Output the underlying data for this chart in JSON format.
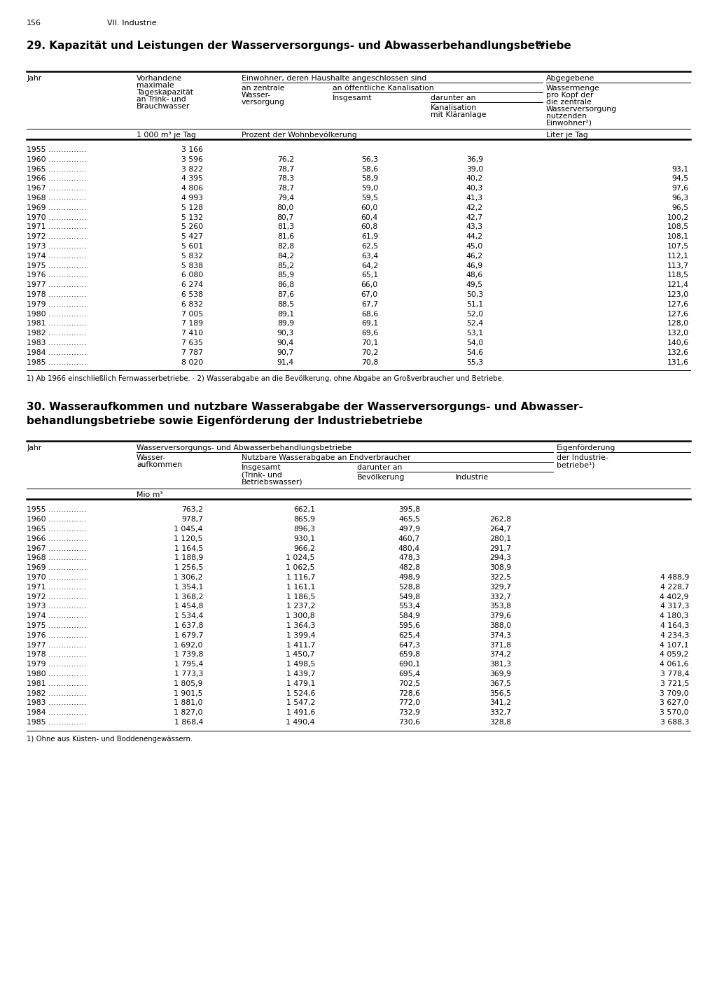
{
  "page_num": "156",
  "section": "VII. Industrie",
  "table1_title_main": "29. Kapazät und Leistungen der Wasserversorgungs- und Abwasserbehandlungsbetriebe",
  "table1_title": "29. Kapazität und Leistungen der Wasserversorgungs- und Abwasserbehandlungsbetriebe¹)",
  "table1_data": [
    {
      "jahr": "1955",
      "kap": "3 166",
      "zentral": "",
      "insges": "",
      "darunter": "",
      "abgeg": ""
    },
    {
      "jahr": "1960",
      "kap": "3 596",
      "zentral": "76,2",
      "insges": "56,3",
      "darunter": "36,9",
      "abgeg": ""
    },
    {
      "jahr": "1965",
      "kap": "3 822",
      "zentral": "78,7",
      "insges": "58,6",
      "darunter": "39,0",
      "abgeg": "93,1"
    },
    {
      "jahr": "1966",
      "kap": "4 395",
      "zentral": "78,3",
      "insges": "58,9",
      "darunter": "40,2",
      "abgeg": "94,5"
    },
    {
      "jahr": "1967",
      "kap": "4 806",
      "zentral": "78,7",
      "insges": "59,0",
      "darunter": "40,3",
      "abgeg": "97,6"
    },
    {
      "jahr": "1968",
      "kap": "4 993",
      "zentral": "79,4",
      "insges": "59,5",
      "darunter": "41,3",
      "abgeg": "96,3"
    },
    {
      "jahr": "1969",
      "kap": "5 128",
      "zentral": "80,0",
      "insges": "60,0",
      "darunter": "42,2",
      "abgeg": "96,5"
    },
    {
      "jahr": "1970",
      "kap": "5 132",
      "zentral": "80,7",
      "insges": "60,4",
      "darunter": "42,7",
      "abgeg": "100,2"
    },
    {
      "jahr": "1971",
      "kap": "5 260",
      "zentral": "81,3",
      "insges": "60,8",
      "darunter": "43,3",
      "abgeg": "108,5"
    },
    {
      "jahr": "1972",
      "kap": "5 427",
      "zentral": "81,6",
      "insges": "61,9",
      "darunter": "44,2",
      "abgeg": "108,1"
    },
    {
      "jahr": "1973",
      "kap": "5 601",
      "zentral": "82,8",
      "insges": "62,5",
      "darunter": "45,0",
      "abgeg": "107,5"
    },
    {
      "jahr": "1974",
      "kap": "5 832",
      "zentral": "84,2",
      "insges": "63,4",
      "darunter": "46,2",
      "abgeg": "112,1"
    },
    {
      "jahr": "1975",
      "kap": "5 838",
      "zentral": "85,2",
      "insges": "64,2",
      "darunter": "46,9",
      "abgeg": "113,7"
    },
    {
      "jahr": "1976",
      "kap": "6 080",
      "zentral": "85,9",
      "insges": "65,1",
      "darunter": "48,6",
      "abgeg": "118,5"
    },
    {
      "jahr": "1977",
      "kap": "6 274",
      "zentral": "86,8",
      "insges": "66,0",
      "darunter": "49,5",
      "abgeg": "121,4"
    },
    {
      "jahr": "1978",
      "kap": "6 538",
      "zentral": "87,6",
      "insges": "67,0",
      "darunter": "50,3",
      "abgeg": "123,0"
    },
    {
      "jahr": "1979",
      "kap": "6 832",
      "zentral": "88,5",
      "insges": "67,7",
      "darunter": "51,1",
      "abgeg": "127,6"
    },
    {
      "jahr": "1980",
      "kap": "7 005",
      "zentral": "89,1",
      "insges": "68,6",
      "darunter": "52,0",
      "abgeg": "127,6"
    },
    {
      "jahr": "1981",
      "kap": "7 189",
      "zentral": "89,9",
      "insges": "69,1",
      "darunter": "52,4",
      "abgeg": "128,0"
    },
    {
      "jahr": "1982",
      "kap": "7 410",
      "zentral": "90,3",
      "insges": "69,6",
      "darunter": "53,1",
      "abgeg": "132,0"
    },
    {
      "jahr": "1983",
      "kap": "7 635",
      "zentral": "90,4",
      "insges": "70,1",
      "darunter": "54,0",
      "abgeg": "140,6"
    },
    {
      "jahr": "1984",
      "kap": "7 787",
      "zentral": "90,7",
      "insges": "70,2",
      "darunter": "54,6",
      "abgeg": "132,6"
    },
    {
      "jahr": "1985",
      "kap": "8 020",
      "zentral": "91,4",
      "insges": "70,8",
      "darunter": "55,3",
      "abgeg": "131,6"
    }
  ],
  "table1_footnote": "1) Ab 1966 einschließlich Fernwasserbetriebe. · 2) Wasserabgabe an die Bevölkerung, ohne Abgabe an Großverbraucher und Betriebe.",
  "table2_title_line1": "30. Wasseraufkommen und nutzbare Wasserabgabe der Wasserversorgungs- und Abwasser-",
  "table2_title_line2": "behandlungsbetriebe sowie Eigenförderung der Industriebetriebe",
  "table2_data": [
    {
      "jahr": "1955",
      "aufk": "763,2",
      "insges": "662,1",
      "bev": "395,8",
      "ind": "",
      "eigen": ""
    },
    {
      "jahr": "1960",
      "aufk": "978,7",
      "insges": "865,9",
      "bev": "465,5",
      "ind": "262,8",
      "eigen": ""
    },
    {
      "jahr": "1965",
      "aufk": "1 045,4",
      "insges": "896,3",
      "bev": "497,9",
      "ind": "264,7",
      "eigen": ""
    },
    {
      "jahr": "1966",
      "aufk": "1 120,5",
      "insges": "930,1",
      "bev": "460,7",
      "ind": "280,1",
      "eigen": ""
    },
    {
      "jahr": "1967",
      "aufk": "1 164,5",
      "insges": "966,2",
      "bev": "480,4",
      "ind": "291,7",
      "eigen": ""
    },
    {
      "jahr": "1968",
      "aufk": "1 188,9",
      "insges": "1 024,5",
      "bev": "478,3",
      "ind": "294,3",
      "eigen": ""
    },
    {
      "jahr": "1969",
      "aufk": "1 256,5",
      "insges": "1 062,5",
      "bev": "482,8",
      "ind": "308,9",
      "eigen": ""
    },
    {
      "jahr": "1970",
      "aufk": "1 306,2",
      "insges": "1 116,7",
      "bev": "498,9",
      "ind": "322,5",
      "eigen": "4 488,9"
    },
    {
      "jahr": "1971",
      "aufk": "1 354,1",
      "insges": "1 161,1",
      "bev": "528,8",
      "ind": "329,7",
      "eigen": "4 228,7"
    },
    {
      "jahr": "1972",
      "aufk": "1 368,2",
      "insges": "1 186,5",
      "bev": "549,8",
      "ind": "332,7",
      "eigen": "4 402,9"
    },
    {
      "jahr": "1973",
      "aufk": "1 454,8",
      "insges": "1 237,2",
      "bev": "553,4",
      "ind": "353,8",
      "eigen": "4 317,3"
    },
    {
      "jahr": "1974",
      "aufk": "1 534,4",
      "insges": "1 300,8",
      "bev": "584,9",
      "ind": "379,6",
      "eigen": "4 180,3"
    },
    {
      "jahr": "1975",
      "aufk": "1 637,8",
      "insges": "1 364,3",
      "bev": "595,6",
      "ind": "388,0",
      "eigen": "4 164,3"
    },
    {
      "jahr": "1976",
      "aufk": "1 679,7",
      "insges": "1 399,4",
      "bev": "625,4",
      "ind": "374,3",
      "eigen": "4 234,3"
    },
    {
      "jahr": "1977",
      "aufk": "1 692,0",
      "insges": "1 411,7",
      "bev": "647,3",
      "ind": "371,8",
      "eigen": "4 107,1"
    },
    {
      "jahr": "1978",
      "aufk": "1 739,8",
      "insges": "1 450,7",
      "bev": "659,8",
      "ind": "374,2",
      "eigen": "4 059,2"
    },
    {
      "jahr": "1979",
      "aufk": "1 795,4",
      "insges": "1 498,5",
      "bev": "690,1",
      "ind": "381,3",
      "eigen": "4 061,6"
    },
    {
      "jahr": "1980",
      "aufk": "1 773,3",
      "insges": "1 439,7",
      "bev": "695,4",
      "ind": "369,9",
      "eigen": "3 778,4"
    },
    {
      "jahr": "1981",
      "aufk": "1 805,9",
      "insges": "1 479,1",
      "bev": "702,5",
      "ind": "367,5",
      "eigen": "3 721,5"
    },
    {
      "jahr": "1982",
      "aufk": "1 901,5",
      "insges": "1 524,6",
      "bev": "728,6",
      "ind": "356,5",
      "eigen": "3 709,0"
    },
    {
      "jahr": "1983",
      "aufk": "1 881,0",
      "insges": "1 547,2",
      "bev": "772,0",
      "ind": "341,2",
      "eigen": "3 627,0"
    },
    {
      "jahr": "1984",
      "aufk": "1 827,0",
      "insges": "1 491,6",
      "bev": "732,9",
      "ind": "332,7",
      "eigen": "3 570,0"
    },
    {
      "jahr": "1985",
      "aufk": "1 868,4",
      "insges": "1 490,4",
      "bev": "730,6",
      "ind": "328,8",
      "eigen": "3 688,3"
    }
  ],
  "table2_footnote": "1) Ohne aus Küsten- und Boddenengewässern.",
  "bg_color": "#ffffff",
  "text_color": "#000000"
}
